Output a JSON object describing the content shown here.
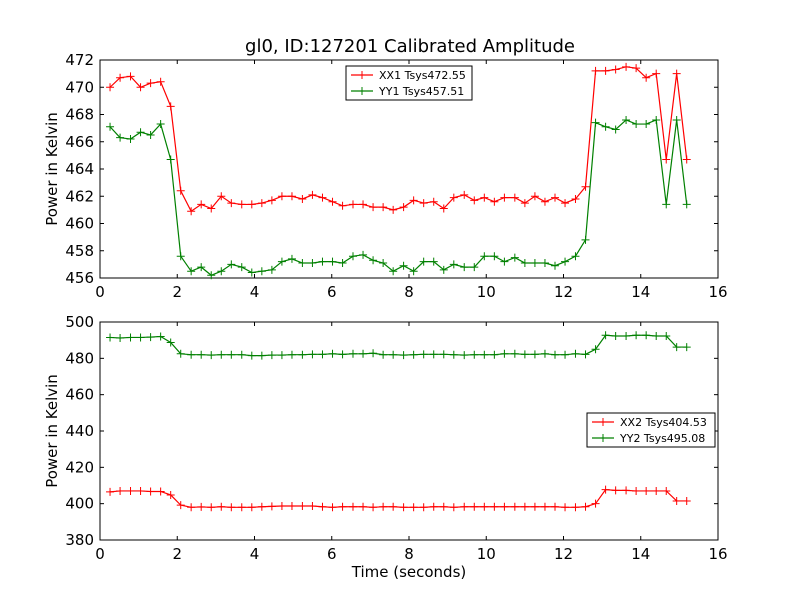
{
  "figure": {
    "title": "gl0, ID:127201 Calibrated Amplitude"
  },
  "colors": {
    "red": "#ff0000",
    "green": "#008000",
    "axis": "#000000"
  },
  "chart_data": [
    {
      "type": "line",
      "title": "gl0, ID:127201 Calibrated Amplitude",
      "xlabel": "",
      "ylabel": "Power in Kelvin",
      "xlim": [
        0,
        16
      ],
      "ylim": [
        456,
        472
      ],
      "xticks": [
        0,
        2,
        4,
        6,
        8,
        10,
        12,
        14,
        16
      ],
      "yticks": [
        456,
        458,
        460,
        462,
        464,
        466,
        468,
        470,
        472
      ],
      "legend_position": "top-center",
      "x": [
        0.26,
        0.52,
        0.79,
        1.05,
        1.31,
        1.57,
        1.83,
        2.09,
        2.36,
        2.62,
        2.88,
        3.14,
        3.4,
        3.67,
        3.93,
        4.19,
        4.45,
        4.71,
        4.97,
        5.24,
        5.5,
        5.76,
        6.02,
        6.28,
        6.55,
        6.81,
        7.07,
        7.33,
        7.59,
        7.86,
        8.12,
        8.38,
        8.64,
        8.9,
        9.16,
        9.43,
        9.69,
        9.95,
        10.21,
        10.47,
        10.74,
        11.0,
        11.26,
        11.52,
        11.78,
        12.04,
        12.31,
        12.57,
        12.83,
        13.09,
        13.35,
        13.62,
        13.88,
        14.14,
        14.4,
        14.66,
        14.93,
        15.19
      ],
      "series": [
        {
          "name": "XX1 Tsys472.55",
          "color": "#ff0000",
          "values": [
            470.0,
            470.7,
            470.8,
            470.0,
            470.3,
            470.4,
            468.6,
            462.4,
            460.9,
            461.4,
            461.1,
            462.0,
            461.5,
            461.4,
            461.4,
            461.5,
            461.7,
            462.0,
            462.0,
            461.8,
            462.1,
            461.9,
            461.6,
            461.3,
            461.4,
            461.4,
            461.2,
            461.2,
            461.0,
            461.2,
            461.7,
            461.5,
            461.6,
            461.1,
            461.9,
            462.1,
            461.7,
            461.9,
            461.6,
            461.9,
            461.9,
            461.5,
            462.0,
            461.6,
            461.9,
            461.5,
            461.8,
            462.7,
            471.2,
            471.2,
            471.3,
            471.5,
            471.4,
            470.7,
            471.0,
            464.7,
            471.0,
            464.7
          ],
          "values_note": "series values aligned to x; see plotted points"
        },
        {
          "name": "YY1 Tsys457.51",
          "color": "#008000",
          "values": [
            467.1,
            466.3,
            466.2,
            466.7,
            466.5,
            467.3,
            464.7,
            457.6,
            456.5,
            456.8,
            456.2,
            456.5,
            457.0,
            456.8,
            456.4,
            456.5,
            456.6,
            457.2,
            457.4,
            457.1,
            457.1,
            457.2,
            457.2,
            457.1,
            457.6,
            457.7,
            457.3,
            457.1,
            456.5,
            456.9,
            456.5,
            457.2,
            457.2,
            456.6,
            457.0,
            456.8,
            456.8,
            457.6,
            457.6,
            457.2,
            457.5,
            457.1,
            457.1,
            457.1,
            456.9,
            457.2,
            457.6,
            458.8,
            467.4,
            467.1,
            466.9,
            467.6,
            467.3,
            467.3,
            467.6,
            461.4,
            467.6,
            461.4
          ]
        }
      ]
    },
    {
      "type": "line",
      "title": "",
      "xlabel": "Time (seconds)",
      "ylabel": "Power in Kelvin",
      "xlim": [
        0,
        16
      ],
      "ylim": [
        380,
        500
      ],
      "xticks": [
        0,
        2,
        4,
        6,
        8,
        10,
        12,
        14,
        16
      ],
      "yticks": [
        380,
        400,
        420,
        440,
        460,
        480,
        500
      ],
      "legend_position": "center-right",
      "x": [
        0.26,
        0.52,
        0.79,
        1.05,
        1.31,
        1.57,
        1.83,
        2.09,
        2.36,
        2.62,
        2.88,
        3.14,
        3.4,
        3.67,
        3.93,
        4.19,
        4.45,
        4.71,
        4.97,
        5.24,
        5.5,
        5.76,
        6.02,
        6.28,
        6.55,
        6.81,
        7.07,
        7.33,
        7.59,
        7.86,
        8.12,
        8.38,
        8.64,
        8.9,
        9.16,
        9.43,
        9.69,
        9.95,
        10.21,
        10.47,
        10.74,
        11.0,
        11.26,
        11.52,
        11.78,
        12.04,
        12.31,
        12.57,
        12.83,
        13.09,
        13.35,
        13.62,
        13.88,
        14.14,
        14.4,
        14.66,
        14.93,
        15.19
      ],
      "series": [
        {
          "name": "XX2 Tsys404.53",
          "color": "#ff0000",
          "values": [
            406.5,
            407.0,
            407.0,
            407.0,
            406.7,
            406.7,
            404.8,
            399.2,
            398.0,
            398.2,
            398.0,
            398.3,
            398.0,
            398.0,
            398.0,
            398.3,
            398.5,
            398.7,
            398.7,
            398.7,
            398.7,
            398.3,
            398.0,
            398.3,
            398.3,
            398.3,
            398.0,
            398.3,
            398.3,
            398.0,
            398.0,
            398.0,
            398.3,
            398.3,
            398.0,
            398.3,
            398.3,
            398.3,
            398.3,
            398.3,
            398.3,
            398.3,
            398.3,
            398.3,
            398.3,
            398.0,
            398.0,
            398.3,
            400.0,
            407.7,
            407.3,
            407.3,
            407.0,
            407.0,
            407.0,
            407.0,
            401.5,
            401.5
          ]
        },
        {
          "name": "YY2 Tsys495.08",
          "color": "#008000",
          "values": [
            491.5,
            491.2,
            491.5,
            491.5,
            491.7,
            492.0,
            488.7,
            482.5,
            482.0,
            482.0,
            481.8,
            482.0,
            482.0,
            482.0,
            481.5,
            481.5,
            481.8,
            481.8,
            482.0,
            482.0,
            482.2,
            482.2,
            482.5,
            482.2,
            482.5,
            482.5,
            482.8,
            482.0,
            482.0,
            481.8,
            482.0,
            482.2,
            482.2,
            482.2,
            482.0,
            481.8,
            482.0,
            482.0,
            482.0,
            482.5,
            482.5,
            482.2,
            482.2,
            482.5,
            482.0,
            482.0,
            482.5,
            482.2,
            485.0,
            492.7,
            492.3,
            492.3,
            492.7,
            492.7,
            492.3,
            492.3,
            486.2,
            486.2
          ]
        }
      ]
    }
  ]
}
